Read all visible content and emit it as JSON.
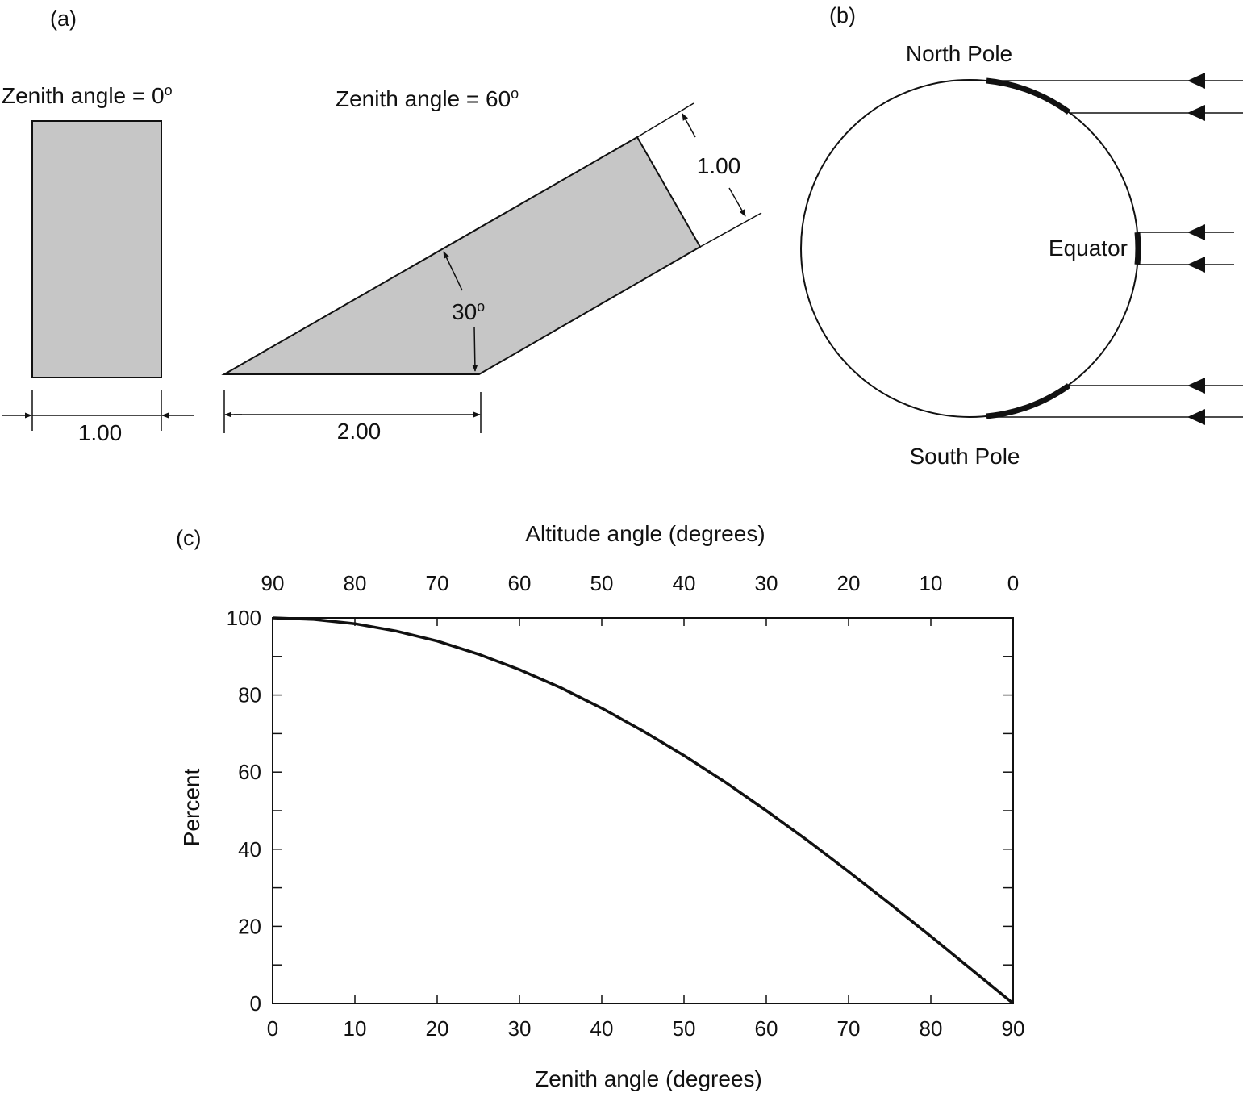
{
  "panel_a": {
    "label": "(a)",
    "left_title": "Zenith angle = 0",
    "left_title_sup": "o",
    "left_width": "1.00",
    "right_title": "Zenith angle = 60",
    "right_title_sup": "o",
    "right_base": "2.00",
    "right_beam_width": "1.00",
    "angle_label": "30",
    "angle_sup": "o",
    "fill_color": "#c6c6c6"
  },
  "panel_b": {
    "label": "(b)",
    "north": "North Pole",
    "equator": "Equator",
    "south": "South Pole"
  },
  "chart_data": {
    "type": "line",
    "label": "(c)",
    "xlabel": "Zenith angle (degrees)",
    "top_xlabel": "Altitude angle (degrees)",
    "ylabel": "Percent",
    "xlim": [
      0,
      90
    ],
    "ylim": [
      0,
      100
    ],
    "x_ticks": [
      "0",
      "10",
      "20",
      "30",
      "40",
      "50",
      "60",
      "70",
      "80",
      "90"
    ],
    "top_ticks": [
      "90",
      "80",
      "70",
      "60",
      "50",
      "40",
      "30",
      "20",
      "10",
      "0"
    ],
    "y_ticks": [
      "0",
      "20",
      "40",
      "60",
      "80",
      "100"
    ],
    "grid": false,
    "series": [
      {
        "x": [
          0,
          5,
          10,
          15,
          20,
          25,
          30,
          35,
          40,
          45,
          50,
          55,
          60,
          65,
          70,
          75,
          80,
          85,
          90
        ],
        "values": [
          100,
          99.6,
          98.5,
          96.6,
          94,
          90.6,
          86.6,
          81.9,
          76.6,
          70.7,
          64.3,
          57.4,
          50,
          42.3,
          34.2,
          25.9,
          17.4,
          8.7,
          0
        ]
      }
    ]
  }
}
